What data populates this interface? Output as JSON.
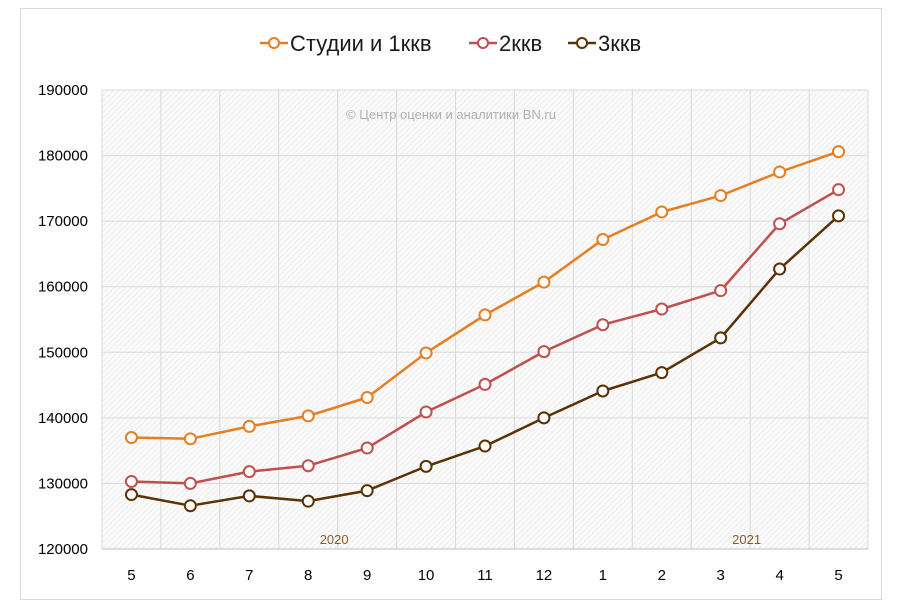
{
  "chart_data": {
    "type": "line",
    "title": "",
    "xlabel": "",
    "ylabel": "",
    "categories": [
      "5",
      "6",
      "7",
      "8",
      "9",
      "10",
      "11",
      "12",
      "1",
      "2",
      "3",
      "4",
      "5"
    ],
    "ylim": [
      120000,
      190000
    ],
    "yticks": [
      "120000",
      "130000",
      "140000",
      "150000",
      "160000",
      "170000",
      "180000",
      "190000"
    ],
    "grid": true,
    "legend_position": "top",
    "series": [
      {
        "name": "Студии и 1ккв",
        "color": "#e67e22",
        "values": [
          137000,
          136800,
          138700,
          140300,
          143100,
          149900,
          155700,
          160700,
          167200,
          171400,
          173900,
          177500,
          180600
        ]
      },
      {
        "name": "2ккв",
        "color": "#c0504d",
        "values": [
          130300,
          130000,
          131800,
          132700,
          135400,
          140900,
          145100,
          150100,
          154200,
          156600,
          159400,
          169600,
          174800
        ]
      },
      {
        "name": "3ккв",
        "color": "#5b3204",
        "values": [
          128300,
          126600,
          128100,
          127300,
          128900,
          132600,
          135700,
          140000,
          144100,
          146900,
          152200,
          162700,
          170800
        ]
      }
    ],
    "watermark": "© Центр оценки и аналитики BN.ru",
    "year_labels": [
      {
        "text": "2020",
        "at_category": 4
      },
      {
        "text": "2021",
        "at_category": 11
      }
    ]
  }
}
